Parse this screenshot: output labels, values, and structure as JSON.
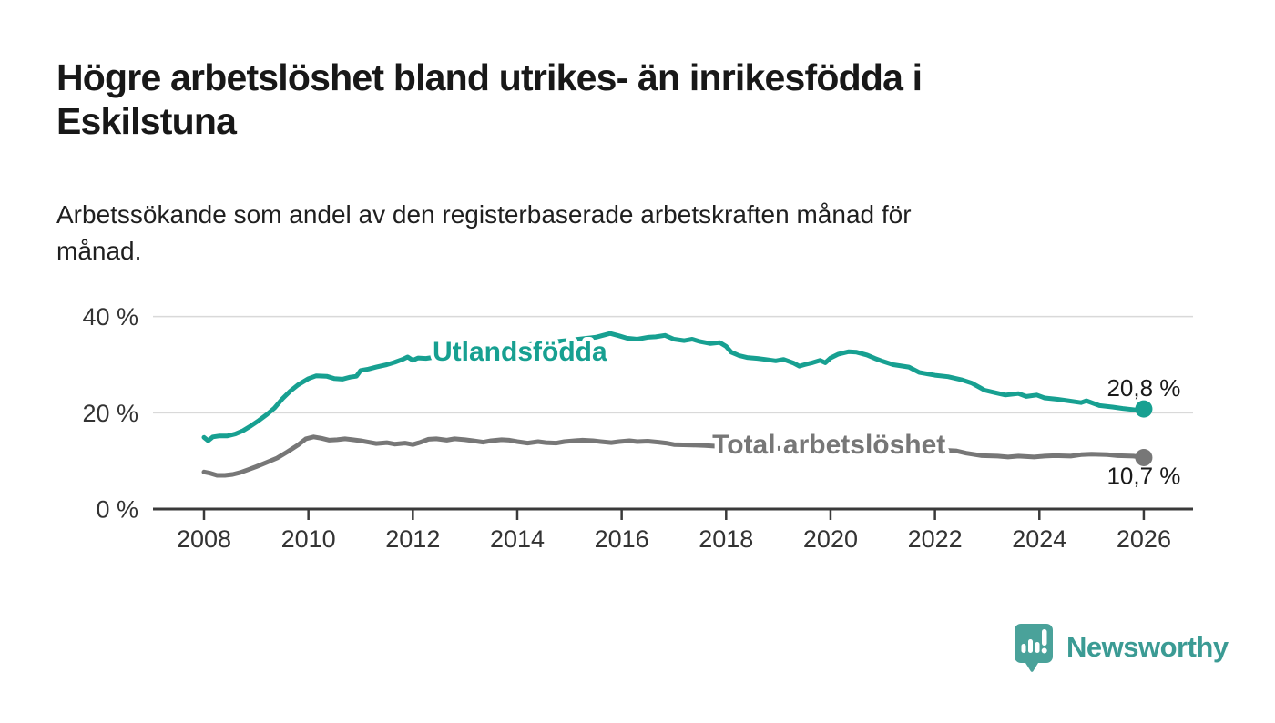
{
  "title_lines": [
    "Högre arbetslöshet bland utrikes- än inrikesfödda i",
    "Eskilstuna"
  ],
  "subtitle_lines": [
    "Arbetssökande som andel av den registerbaserade arbetskraften månad för",
    "månad."
  ],
  "logo": {
    "text": "Newsworthy",
    "icon": "newsworthy-speech-bubble-bar-chart-icon",
    "text_color": "#3b9b94",
    "icon_color": "#4aa29a"
  },
  "colors": {
    "accent_teal": "#17a091",
    "line_gray": "#777777",
    "gridline": "#d9d9d9",
    "axis": "#3a3a3a",
    "text_dark": "#1a1a1a"
  },
  "chart_data": {
    "type": "line",
    "title": "Högre arbetslöshet bland utrikes- än inrikesfödda i Eskilstuna",
    "subtitle": "Arbetssökande som andel av den registerbaserade arbetskraften månad för månad.",
    "xlabel": "",
    "ylabel": "",
    "x_ticks": [
      2008,
      2010,
      2012,
      2014,
      2016,
      2018,
      2020,
      2022,
      2024,
      2026
    ],
    "x_tick_labels": [
      "2008",
      "2010",
      "2012",
      "2014",
      "2016",
      "2018",
      "2020",
      "2022",
      "2024",
      "2026"
    ],
    "y_ticks": [
      0,
      20,
      40
    ],
    "y_tick_labels": [
      "0 %",
      "20 %",
      "40 %"
    ],
    "xlim": [
      2008,
      2027
    ],
    "ylim": [
      0,
      42
    ],
    "grid": "horizontal-only",
    "legend_position": "inline-labels",
    "series": [
      {
        "name": "Utlandsfödda",
        "color": "#17a091",
        "end_label": "20,8 %",
        "end_value": 20.8,
        "label_at": {
          "year": 2014.05,
          "value": 32.7
        },
        "points": [
          [
            2008.0,
            14.9
          ],
          [
            2008.08,
            14.2
          ],
          [
            2008.17,
            15.0
          ],
          [
            2008.3,
            15.2
          ],
          [
            2008.45,
            15.2
          ],
          [
            2008.6,
            15.6
          ],
          [
            2008.75,
            16.3
          ],
          [
            2008.9,
            17.3
          ],
          [
            2009.05,
            18.4
          ],
          [
            2009.2,
            19.6
          ],
          [
            2009.35,
            21.0
          ],
          [
            2009.5,
            22.9
          ],
          [
            2009.65,
            24.5
          ],
          [
            2009.8,
            25.8
          ],
          [
            2010.0,
            27.1
          ],
          [
            2010.15,
            27.7
          ],
          [
            2010.35,
            27.6
          ],
          [
            2010.5,
            27.1
          ],
          [
            2010.65,
            27.0
          ],
          [
            2010.8,
            27.4
          ],
          [
            2010.92,
            27.6
          ],
          [
            2011.0,
            28.8
          ],
          [
            2011.15,
            29.1
          ],
          [
            2011.3,
            29.5
          ],
          [
            2011.5,
            30.0
          ],
          [
            2011.65,
            30.5
          ],
          [
            2011.8,
            31.1
          ],
          [
            2011.9,
            31.6
          ],
          [
            2012.0,
            30.9
          ],
          [
            2012.1,
            31.4
          ],
          [
            2012.25,
            31.3
          ],
          [
            2012.5,
            31.7
          ],
          [
            2012.75,
            32.1
          ],
          [
            2013.0,
            32.5
          ],
          [
            2013.25,
            32.9
          ],
          [
            2013.5,
            33.2
          ],
          [
            2013.75,
            33.6
          ],
          [
            2014.0,
            33.9
          ],
          [
            2014.25,
            34.2
          ],
          [
            2014.5,
            34.5
          ],
          [
            2014.75,
            34.8
          ],
          [
            2015.0,
            35.1
          ],
          [
            2015.25,
            35.4
          ],
          [
            2015.5,
            35.7
          ],
          [
            2015.78,
            36.5
          ],
          [
            2015.95,
            36.0
          ],
          [
            2016.1,
            35.5
          ],
          [
            2016.3,
            35.3
          ],
          [
            2016.5,
            35.7
          ],
          [
            2016.65,
            35.8
          ],
          [
            2016.83,
            36.1
          ],
          [
            2017.0,
            35.3
          ],
          [
            2017.2,
            35.0
          ],
          [
            2017.35,
            35.3
          ],
          [
            2017.5,
            34.8
          ],
          [
            2017.7,
            34.4
          ],
          [
            2017.88,
            34.6
          ],
          [
            2018.0,
            33.8
          ],
          [
            2018.1,
            32.6
          ],
          [
            2018.25,
            31.9
          ],
          [
            2018.4,
            31.5
          ],
          [
            2018.6,
            31.3
          ],
          [
            2018.75,
            31.1
          ],
          [
            2018.95,
            30.8
          ],
          [
            2019.1,
            31.1
          ],
          [
            2019.3,
            30.3
          ],
          [
            2019.4,
            29.7
          ],
          [
            2019.5,
            30.0
          ],
          [
            2019.65,
            30.4
          ],
          [
            2019.8,
            30.9
          ],
          [
            2019.9,
            30.4
          ],
          [
            2020.0,
            31.4
          ],
          [
            2020.15,
            32.2
          ],
          [
            2020.35,
            32.7
          ],
          [
            2020.5,
            32.6
          ],
          [
            2020.7,
            32.0
          ],
          [
            2020.85,
            31.3
          ],
          [
            2021.0,
            30.7
          ],
          [
            2021.2,
            30.0
          ],
          [
            2021.5,
            29.5
          ],
          [
            2021.7,
            28.4
          ],
          [
            2022.0,
            27.8
          ],
          [
            2022.25,
            27.5
          ],
          [
            2022.5,
            26.9
          ],
          [
            2022.7,
            26.2
          ],
          [
            2022.85,
            25.3
          ],
          [
            2022.95,
            24.7
          ],
          [
            2023.1,
            24.3
          ],
          [
            2023.35,
            23.7
          ],
          [
            2023.6,
            24.0
          ],
          [
            2023.75,
            23.4
          ],
          [
            2023.95,
            23.7
          ],
          [
            2024.1,
            23.1
          ],
          [
            2024.35,
            22.8
          ],
          [
            2024.55,
            22.5
          ],
          [
            2024.8,
            22.1
          ],
          [
            2024.9,
            22.5
          ],
          [
            2025.15,
            21.5
          ],
          [
            2025.4,
            21.2
          ],
          [
            2025.6,
            20.9
          ],
          [
            2025.85,
            20.6
          ],
          [
            2026.0,
            20.8
          ]
        ]
      },
      {
        "name": "Total arbetslöshet",
        "color": "#777777",
        "end_label": "10,7 %",
        "end_value": 10.7,
        "label_at": {
          "year": 2019.97,
          "value": 13.4
        },
        "points": [
          [
            2008.0,
            7.7
          ],
          [
            2008.1,
            7.5
          ],
          [
            2008.25,
            7.0
          ],
          [
            2008.4,
            7.0
          ],
          [
            2008.55,
            7.2
          ],
          [
            2008.7,
            7.6
          ],
          [
            2008.85,
            8.2
          ],
          [
            2009.0,
            8.8
          ],
          [
            2009.2,
            9.7
          ],
          [
            2009.4,
            10.6
          ],
          [
            2009.6,
            11.9
          ],
          [
            2009.8,
            13.3
          ],
          [
            2009.95,
            14.6
          ],
          [
            2010.1,
            15.0
          ],
          [
            2010.25,
            14.7
          ],
          [
            2010.4,
            14.3
          ],
          [
            2010.55,
            14.4
          ],
          [
            2010.7,
            14.6
          ],
          [
            2010.85,
            14.4
          ],
          [
            2011.0,
            14.2
          ],
          [
            2011.15,
            13.9
          ],
          [
            2011.3,
            13.6
          ],
          [
            2011.5,
            13.8
          ],
          [
            2011.65,
            13.5
          ],
          [
            2011.85,
            13.7
          ],
          [
            2012.0,
            13.4
          ],
          [
            2012.15,
            13.9
          ],
          [
            2012.3,
            14.5
          ],
          [
            2012.45,
            14.6
          ],
          [
            2012.65,
            14.3
          ],
          [
            2012.8,
            14.6
          ],
          [
            2013.0,
            14.4
          ],
          [
            2013.15,
            14.2
          ],
          [
            2013.35,
            13.9
          ],
          [
            2013.5,
            14.2
          ],
          [
            2013.7,
            14.4
          ],
          [
            2013.85,
            14.3
          ],
          [
            2014.0,
            14.0
          ],
          [
            2014.2,
            13.7
          ],
          [
            2014.4,
            14.0
          ],
          [
            2014.55,
            13.8
          ],
          [
            2014.75,
            13.7
          ],
          [
            2014.9,
            14.0
          ],
          [
            2015.1,
            14.2
          ],
          [
            2015.25,
            14.3
          ],
          [
            2015.45,
            14.2
          ],
          [
            2015.6,
            14.0
          ],
          [
            2015.8,
            13.8
          ],
          [
            2015.95,
            14.0
          ],
          [
            2016.15,
            14.2
          ],
          [
            2016.3,
            14.0
          ],
          [
            2016.5,
            14.1
          ],
          [
            2016.7,
            13.9
          ],
          [
            2016.85,
            13.7
          ],
          [
            2017.0,
            13.4
          ],
          [
            2017.35,
            13.3
          ],
          [
            2017.6,
            13.2
          ],
          [
            2018.0,
            12.9
          ],
          [
            2018.5,
            12.7
          ],
          [
            2019.0,
            12.6
          ],
          [
            2019.5,
            12.5
          ],
          [
            2020.0,
            12.9
          ],
          [
            2020.4,
            13.3
          ],
          [
            2020.8,
            13.1
          ],
          [
            2021.2,
            12.8
          ],
          [
            2021.6,
            12.5
          ],
          [
            2022.0,
            12.3
          ],
          [
            2022.4,
            12.1
          ],
          [
            2022.6,
            11.6
          ],
          [
            2022.9,
            11.1
          ],
          [
            2023.2,
            11.0
          ],
          [
            2023.4,
            10.8
          ],
          [
            2023.6,
            11.0
          ],
          [
            2023.9,
            10.8
          ],
          [
            2024.1,
            11.0
          ],
          [
            2024.3,
            11.1
          ],
          [
            2024.6,
            11.0
          ],
          [
            2024.8,
            11.3
          ],
          [
            2025.0,
            11.4
          ],
          [
            2025.3,
            11.3
          ],
          [
            2025.5,
            11.1
          ],
          [
            2025.8,
            11.0
          ],
          [
            2026.0,
            10.7
          ]
        ]
      }
    ]
  }
}
